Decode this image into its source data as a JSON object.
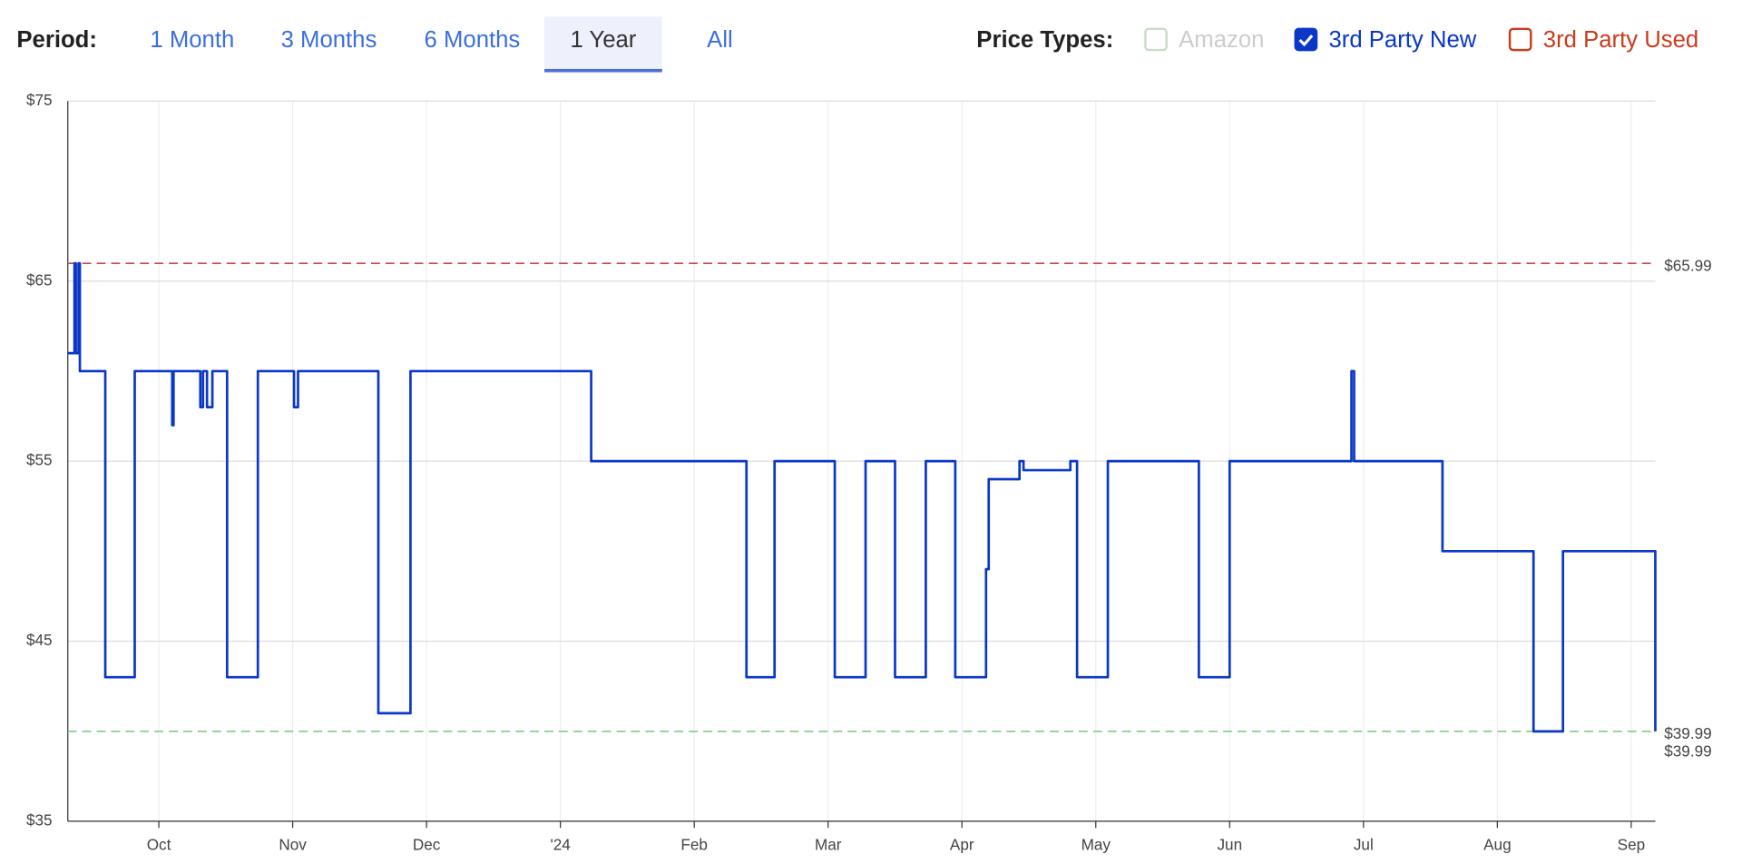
{
  "toolbar": {
    "period_label": "Period:",
    "periods": [
      "1 Month",
      "3 Months",
      "6 Months",
      "1 Year",
      "All"
    ],
    "selected_period": 3,
    "price_types_label": "Price Types:",
    "price_types": [
      {
        "name": "Amazon",
        "checked": false,
        "disabled": true,
        "color": "#c8dcc8"
      },
      {
        "name": "3rd Party New",
        "checked": true,
        "disabled": false,
        "color": "#0a37c8"
      },
      {
        "name": "3rd Party Used",
        "checked": false,
        "disabled": false,
        "color": "#c83c1e"
      }
    ]
  },
  "chart_data": {
    "type": "step-line",
    "grid": true,
    "xlim": [
      0.32,
      12.18
    ],
    "xticks": [
      {
        "value": 1,
        "label": "Oct"
      },
      {
        "value": 2,
        "label": "Nov"
      },
      {
        "value": 3,
        "label": "Dec"
      },
      {
        "value": 4,
        "label": "'24"
      },
      {
        "value": 5,
        "label": "Feb"
      },
      {
        "value": 6,
        "label": "Mar"
      },
      {
        "value": 7,
        "label": "Apr"
      },
      {
        "value": 8,
        "label": "May"
      },
      {
        "value": 9,
        "label": "Jun"
      },
      {
        "value": 10,
        "label": "Jul"
      },
      {
        "value": 11,
        "label": "Aug"
      },
      {
        "value": 12,
        "label": "Sep"
      }
    ],
    "ylim": [
      35,
      75
    ],
    "yticks": [
      {
        "value": 35,
        "label": "$35"
      },
      {
        "value": 45,
        "label": "$45"
      },
      {
        "value": 55,
        "label": "$55"
      },
      {
        "value": 65,
        "label": "$65"
      },
      {
        "value": 75,
        "label": "$75"
      }
    ],
    "x": [
      0.32,
      0.37,
      0.38,
      0.4,
      0.41,
      0.6,
      0.82,
      1.1,
      1.11,
      1.31,
      1.33,
      1.36,
      1.4,
      1.51,
      1.74,
      2.01,
      2.04,
      2.64,
      2.88,
      4.23,
      5.39,
      5.6,
      6.05,
      6.28,
      6.5,
      6.73,
      6.95,
      7.18,
      7.2,
      7.43,
      7.46,
      7.81,
      7.86,
      8.09,
      8.77,
      9.0,
      9.91,
      9.93,
      10.59,
      11.27,
      11.49,
      12.18
    ],
    "series": [
      {
        "color": "#0a37c8",
        "end_label": "$39.99",
        "values": [
          61,
          65.99,
          61,
          65.99,
          60,
          43,
          60,
          57,
          60,
          58,
          60,
          58,
          60,
          43,
          60,
          58,
          60,
          41,
          60,
          55,
          43,
          55,
          43,
          55,
          43,
          55,
          43,
          49,
          54,
          55,
          54.5,
          55,
          43,
          55,
          43,
          55,
          60,
          55,
          50,
          39.99,
          50,
          39.99
        ]
      }
    ],
    "reference_lines": [
      {
        "value": 65.99,
        "label": "$65.99",
        "color": "#c84646"
      },
      {
        "value": 39.99,
        "label": "$39.99",
        "color": "#78c878"
      }
    ]
  }
}
